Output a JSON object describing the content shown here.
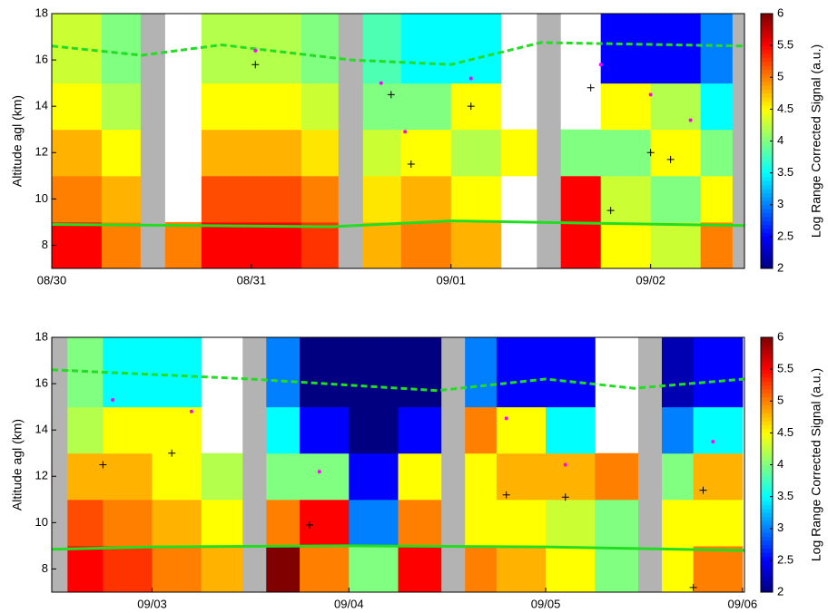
{
  "chart_data": [
    {
      "type": "heatmap",
      "ylabel": "Altitude agl (km)",
      "colorbar_label": "Log Range Corrected Signal (a.u.)",
      "xlim": [
        0,
        3.47
      ],
      "xticks": [
        {
          "value": 0,
          "label": "08/30"
        },
        {
          "value": 1,
          "label": "08/31"
        },
        {
          "value": 2,
          "label": "09/01"
        },
        {
          "value": 3,
          "label": "09/02"
        }
      ],
      "ylim": [
        7,
        18
      ],
      "yticks": [
        8,
        10,
        12,
        14,
        16,
        18
      ],
      "clim": [
        2,
        6
      ],
      "cticks": [
        2,
        2.5,
        3,
        3.5,
        4,
        4.5,
        5,
        5.5,
        6
      ],
      "heatmap": {
        "x_edges": [
          0,
          0.25,
          0.5,
          0.75,
          1,
          1.25,
          1.5,
          1.75,
          2,
          2.25,
          2.5,
          2.75,
          3,
          3.25,
          3.5
        ],
        "y_edges": [
          7,
          9,
          11,
          13,
          15,
          18
        ],
        "values": [
          [
            5.5,
            5,
            4.8,
            4.5,
            4.3
          ],
          [
            5,
            4.8,
            4.5,
            4.2,
            4
          ],
          [
            5,
            null,
            null,
            null,
            null
          ],
          [
            5.5,
            5.2,
            4.8,
            4.5,
            4.2
          ],
          [
            5.5,
            5.2,
            4.8,
            4.5,
            4.2
          ],
          [
            5.3,
            5,
            4.6,
            4.3,
            4
          ],
          [
            4.8,
            4.6,
            4.3,
            4,
            3.8
          ],
          [
            5,
            4.8,
            4.5,
            4,
            3.5
          ],
          [
            4.8,
            4.5,
            4.2,
            4.5,
            3.5
          ],
          [
            null,
            null,
            4.5,
            null,
            null
          ],
          [
            5.5,
            5.5,
            4,
            null,
            null
          ],
          [
            4.5,
            4.3,
            4,
            4.5,
            2.5
          ],
          [
            4.3,
            4,
            4.5,
            4.2,
            2.5
          ],
          [
            5,
            4.5,
            4,
            3.5,
            3
          ]
        ]
      },
      "gaps": [
        [
          0.445,
          0.568
        ],
        [
          1.436,
          1.559
        ],
        [
          2.43,
          2.55
        ],
        [
          3.41,
          3.47
        ]
      ],
      "gap_color": "#b3b3b3",
      "series": [
        {
          "color": "#22dd22",
          "style": "dashed",
          "x": [
            0,
            0.45,
            0.85,
            1.5,
            2,
            2.45,
            3.47
          ],
          "values": [
            16.6,
            16.2,
            16.65,
            16,
            15.8,
            16.75,
            16.6
          ]
        },
        {
          "color": "#22dd22",
          "style": "solid",
          "x": [
            0,
            1.4,
            2,
            3.47
          ],
          "values": [
            8.9,
            8.8,
            9.05,
            8.85
          ]
        },
        {
          "color": "#ff00ff",
          "style": "dot",
          "x": [
            1.02,
            1.65,
            1.77,
            2.1,
            2.75,
            3,
            3.2
          ],
          "values": [
            16.4,
            15,
            12.9,
            15.2,
            15.8,
            14.5,
            13.4
          ]
        },
        {
          "color": "#000000",
          "style": "plus",
          "x": [
            1.02,
            1.7,
            1.8,
            2.1,
            2.7,
            2.8,
            3,
            3.1
          ],
          "values": [
            15.8,
            14.5,
            11.5,
            14,
            14.8,
            9.5,
            12,
            11.7
          ]
        }
      ]
    },
    {
      "type": "heatmap",
      "ylabel": "Altitude agl (km)",
      "colorbar_label": "Log Range Corrected Signal (a.u.)",
      "xlim": [
        2.49,
        6.01
      ],
      "xticks": [
        {
          "value": 3,
          "label": "09/03"
        },
        {
          "value": 4,
          "label": "09/04"
        },
        {
          "value": 5,
          "label": "09/05"
        },
        {
          "value": 6,
          "label": "09/06"
        }
      ],
      "ylim": [
        7,
        18
      ],
      "yticks": [
        8,
        10,
        12,
        14,
        16,
        18
      ],
      "clim": [
        2,
        6
      ],
      "cticks": [
        2,
        2.5,
        3,
        3.5,
        4,
        4.5,
        5,
        5.5,
        6
      ],
      "heatmap": {
        "x_edges": [
          2.5,
          2.75,
          3,
          3.25,
          3.5,
          3.75,
          4,
          4.25,
          4.5,
          4.75,
          5,
          5.25,
          5.5,
          5.75,
          6
        ],
        "y_edges": [
          7,
          9,
          11,
          13,
          15,
          18
        ],
        "values": [
          [
            5.5,
            5.2,
            4.8,
            4.2,
            4
          ],
          [
            5.3,
            5,
            4.8,
            4.5,
            3.5
          ],
          [
            5,
            4.8,
            4.5,
            4.5,
            3.5
          ],
          [
            4.8,
            4.5,
            4.2,
            null,
            null
          ],
          [
            6,
            5,
            4,
            3.5,
            3
          ],
          [
            5,
            5.5,
            4,
            2.5,
            2
          ],
          [
            4,
            3,
            2.5,
            2,
            2
          ],
          [
            5.5,
            5,
            4.5,
            2.5,
            2
          ],
          [
            5,
            4.5,
            4.5,
            5,
            3
          ],
          [
            4.8,
            4.5,
            4.8,
            4.5,
            2.5
          ],
          [
            4.5,
            4.3,
            4.8,
            3.5,
            2.5
          ],
          [
            4,
            4,
            5,
            null,
            null
          ],
          [
            4.5,
            4.5,
            4,
            3,
            2.2
          ],
          [
            5,
            4.5,
            4.8,
            3.5,
            2.5
          ]
        ]
      },
      "gaps": [
        [
          2.49,
          2.57
        ],
        [
          3.46,
          3.58
        ],
        [
          4.47,
          4.59
        ],
        [
          5.47,
          5.59
        ]
      ],
      "gap_color": "#b3b3b3",
      "series": [
        {
          "color": "#22dd22",
          "style": "dashed",
          "x": [
            2.49,
            3.5,
            4.45,
            5,
            5.45,
            6.01
          ],
          "values": [
            16.6,
            16.2,
            15.7,
            16.2,
            15.8,
            16.2
          ]
        },
        {
          "color": "#22dd22",
          "style": "solid",
          "x": [
            2.49,
            3,
            4,
            5,
            6.01
          ],
          "values": [
            8.85,
            8.95,
            9,
            8.95,
            8.8
          ]
        },
        {
          "color": "#ff00ff",
          "style": "dot",
          "x": [
            2.8,
            3.2,
            3.85,
            4.8,
            5.1,
            5.85
          ],
          "values": [
            15.3,
            14.8,
            12.2,
            14.5,
            12.5,
            13.5
          ]
        },
        {
          "color": "#000000",
          "style": "plus",
          "x": [
            2.75,
            3.1,
            3.8,
            4.8,
            5.1,
            5.8,
            5.75
          ],
          "values": [
            12.5,
            13,
            9.9,
            11.2,
            11.1,
            11.4,
            7.2
          ]
        }
      ]
    }
  ]
}
